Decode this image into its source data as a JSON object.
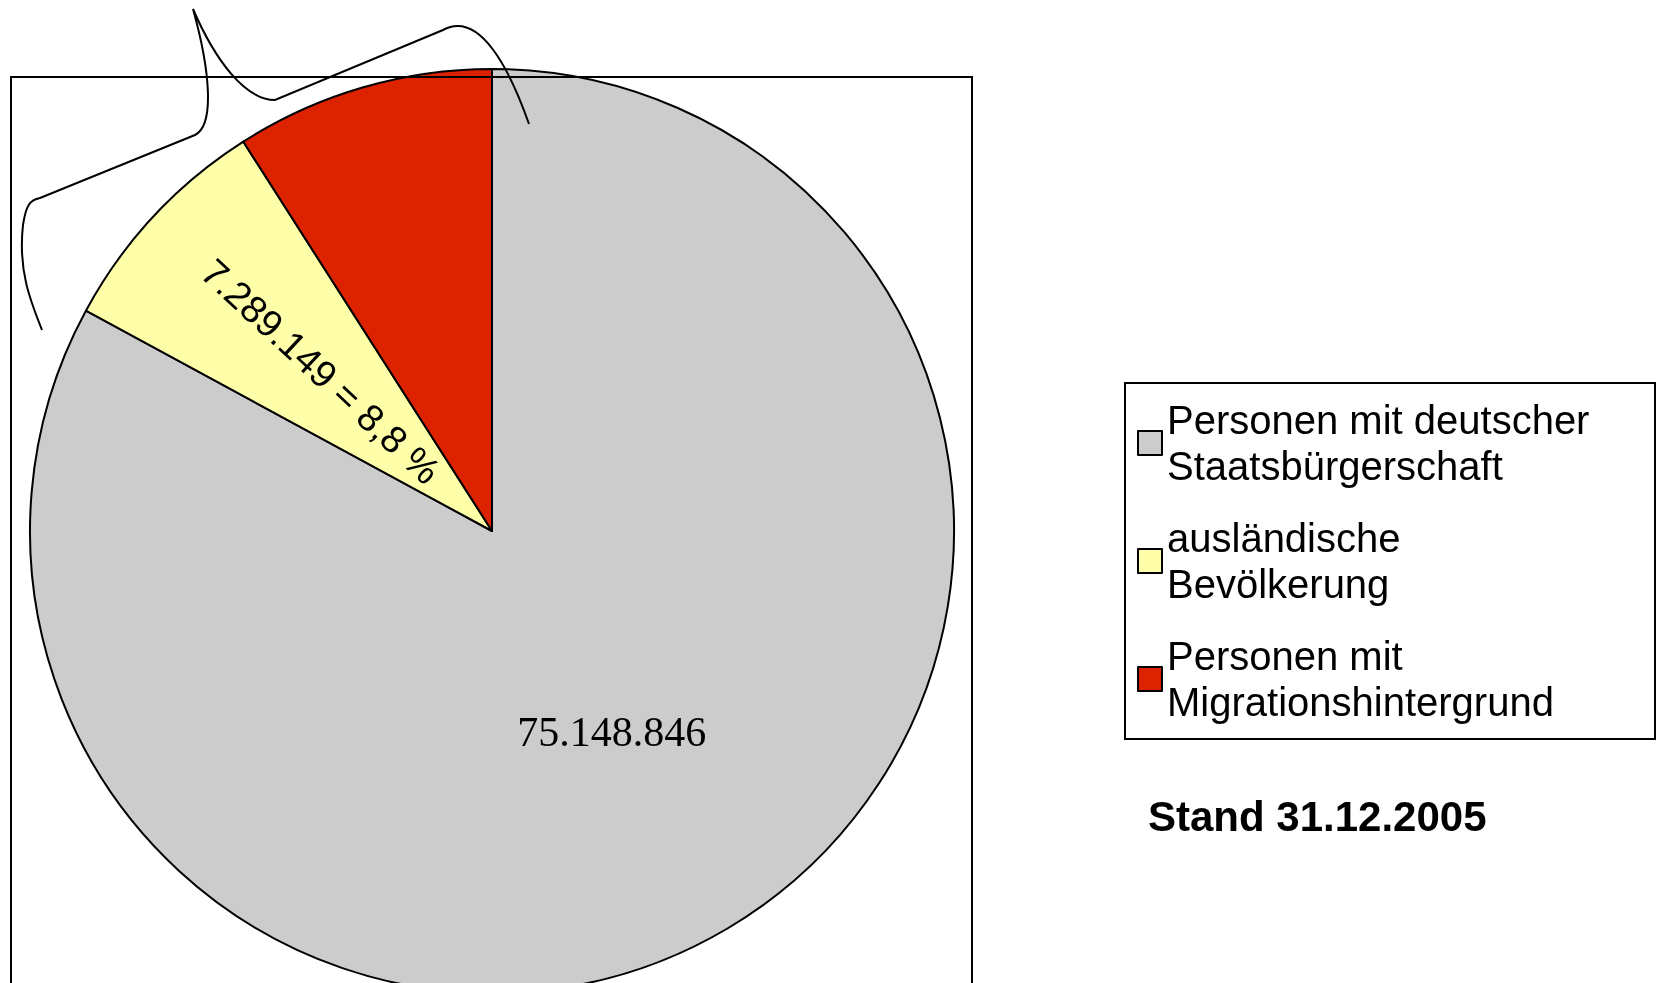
{
  "chart_data": {
    "type": "pie",
    "categories": [
      "Personen mit deutscher Staatsbürgerschaft",
      "ausländische Bevölkerung",
      "Personen mit Migrationshintergrund"
    ],
    "values": [
      75148846,
      7289149,
      8200000
    ],
    "colors": [
      "#cccccc",
      "#ffffaa",
      "#dd2200"
    ],
    "value_labels": [
      "75.148.846",
      "7.289.149 = 8,8 %",
      null
    ],
    "legend": "right",
    "annotations": [
      "Stand 31.12.2005"
    ]
  }
}
